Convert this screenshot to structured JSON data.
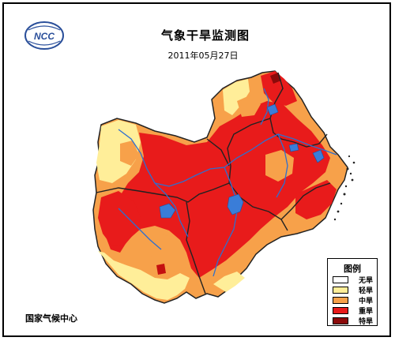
{
  "map": {
    "title": "气象干旱监测图",
    "date": "2011年05月27日",
    "logo_text": "NCC",
    "credit": "国家气候中心"
  },
  "legend": {
    "title": "图例",
    "items": [
      {
        "label": "无旱",
        "color": "#ffffff"
      },
      {
        "label": "轻旱",
        "color": "#ffee99"
      },
      {
        "label": "中旱",
        "color": "#f7a14a"
      },
      {
        "label": "重旱",
        "color": "#e81b1b"
      },
      {
        "label": "特旱",
        "color": "#8b0a0a"
      }
    ]
  },
  "colors": {
    "river": "#2e6fcf",
    "lake": "#3a7dd8",
    "province_border": "#222222"
  }
}
